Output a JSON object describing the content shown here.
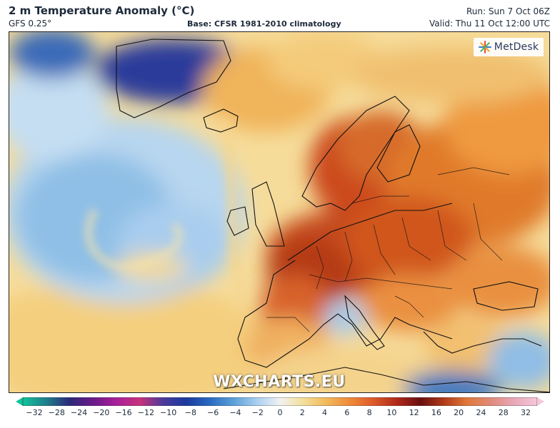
{
  "header": {
    "title": "2 m Temperature Anomaly (°C)",
    "model": "GFS 0.25°",
    "base": "Base: CFSR 1981-2010 climatology",
    "run": "Run: Sun 7 Oct 06Z",
    "valid": "Valid: Thu 11 Oct 12:00 UTC"
  },
  "logo": {
    "name": "MetDesk",
    "icon": "metdesk-star-icon"
  },
  "watermark": "WXCHARTS.EU",
  "colorbar": {
    "ticks": [
      "−32",
      "−28",
      "−24",
      "−20",
      "−16",
      "−12",
      "−10",
      "−8",
      "−6",
      "−4",
      "−2",
      "0",
      "2",
      "4",
      "6",
      "8",
      "10",
      "12",
      "16",
      "20",
      "24",
      "28",
      "32"
    ],
    "stops": [
      "#10c49a",
      "#1f7f8c",
      "#2a2a7a",
      "#6a1a8a",
      "#a8209a",
      "#c8327c",
      "#4a3a9a",
      "#1a3aa0",
      "#2a6ac0",
      "#5aa0d8",
      "#a8cff0",
      "#f2f2f2",
      "#f3df9a",
      "#f2b95a",
      "#ef8a3a",
      "#dd5a2a",
      "#b02a1a",
      "#6a1010",
      "#b03a1a",
      "#e07a3a",
      "#e08a7a",
      "#e8a8b8",
      "#f4c8da"
    ],
    "extend_colors": {
      "left": "#10c49a",
      "right": "#f4c8da"
    }
  }
}
